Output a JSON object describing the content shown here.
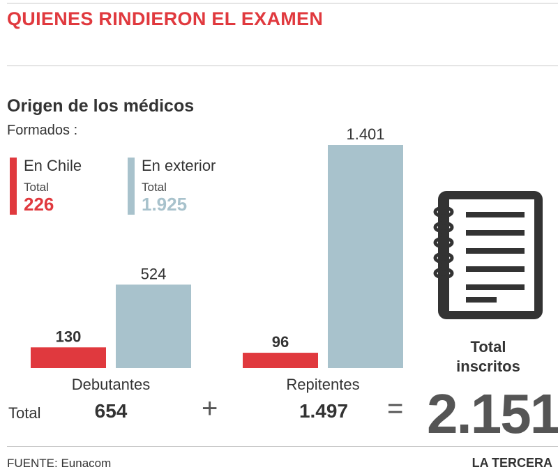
{
  "header": {
    "title": "QUIENES RINDIERON EL EXAMEN"
  },
  "subtitle": "Origen de los médicos",
  "formados_label": "Formados :",
  "legend": {
    "chile": {
      "name": "En Chile",
      "total_label": "Total",
      "total": "226",
      "color": "#e0393e"
    },
    "exterior": {
      "name": "En exterior",
      "total_label": "Total",
      "total": "1.925",
      "color": "#a8c2cc"
    }
  },
  "chart_data": {
    "type": "bar",
    "categories": [
      "Debutantes",
      "Repitentes"
    ],
    "series": [
      {
        "name": "En Chile",
        "values": [
          130,
          96
        ],
        "labels": [
          "130",
          "96"
        ],
        "color": "#e0393e"
      },
      {
        "name": "En exterior",
        "values": [
          524,
          1401
        ],
        "labels": [
          "524",
          "1.401"
        ],
        "color": "#a8c2cc"
      }
    ],
    "totals": [
      {
        "category": "Debutantes",
        "label": "Total",
        "value": "654"
      },
      {
        "category": "Repitentes",
        "value": "1.497"
      }
    ],
    "grand_total": {
      "label_line1": "Total",
      "label_line2": "inscritos",
      "value": "2.151"
    },
    "ylim": [
      0,
      1401
    ],
    "grid": false
  },
  "operators": {
    "plus": "+",
    "equals": "="
  },
  "icon": "notebook-icon",
  "footer": {
    "source": "FUENTE: Eunacom",
    "brand": "LA TERCERA"
  }
}
